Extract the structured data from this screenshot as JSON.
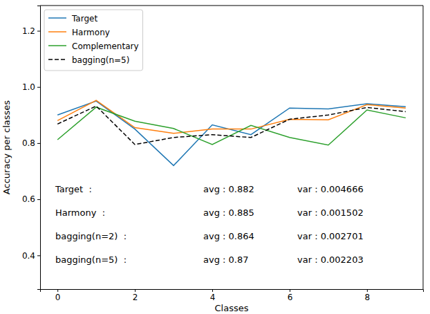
{
  "chart_data": {
    "type": "line",
    "x_label": "Classes",
    "y_label": "Accuracy per classes",
    "x": [
      0,
      1,
      2,
      3,
      4,
      5,
      6,
      7,
      8,
      9
    ],
    "xlim": [
      -0.45,
      9.45
    ],
    "xticks": [
      0,
      2,
      4,
      6,
      8
    ],
    "ylim": [
      0.28,
      1.29
    ],
    "yticks": [
      0.4,
      0.6,
      0.8,
      {
        "value": 1,
        "label": "1.0"
      },
      1.2
    ],
    "grid": false,
    "legend": "upper left",
    "series": [
      {
        "name": "Target",
        "color": "#1f77b4",
        "line_style": "solid",
        "values": [
          0.9,
          0.95,
          0.85,
          0.72,
          0.865,
          0.83,
          0.925,
          0.922,
          0.94,
          0.93
        ]
      },
      {
        "name": "Harmony",
        "color": "#ff7f0e",
        "line_style": "solid",
        "values": [
          0.88,
          0.952,
          0.855,
          0.835,
          0.85,
          0.85,
          0.885,
          0.883,
          0.937,
          0.925
        ]
      },
      {
        "name": "Complementary",
        "color": "#2ca02c",
        "line_style": "solid",
        "values": [
          0.812,
          0.928,
          0.878,
          0.852,
          0.795,
          0.863,
          0.82,
          0.793,
          0.918,
          0.89
        ]
      },
      {
        "name": "bagging(n=5)",
        "color": "#000000",
        "line_style": "dashed",
        "values": [
          0.868,
          0.932,
          0.795,
          0.82,
          0.83,
          0.82,
          0.885,
          0.9,
          0.927,
          0.912
        ]
      }
    ],
    "annotations": [
      [
        "Target  :",
        "avg : 0.882",
        "var : 0.004666"
      ],
      [
        "Harmony  :",
        "avg : 0.885",
        "var : 0.001502"
      ],
      [
        "bagging(n=2)  :",
        "avg : 0.864",
        "var : 0.002701"
      ],
      [
        "bagging(n=5)  :",
        "avg : 0.87",
        "var : 0.002203"
      ]
    ]
  }
}
